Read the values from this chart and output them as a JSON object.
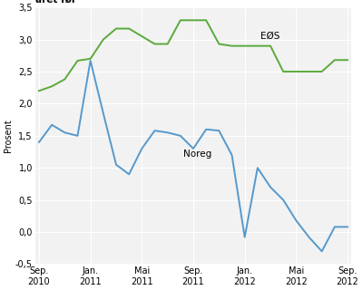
{
  "ylabel": "Prosent",
  "eos_color": "#5aaa3c",
  "noreg_color": "#5599cc",
  "grid_color": "#cccccc",
  "bg_color": "#f2f2f2",
  "eos_label": "EØS",
  "noreg_label": "Noreg",
  "eos_x": [
    0,
    1,
    2,
    3,
    4,
    5,
    6,
    7,
    8,
    9,
    10,
    11,
    12,
    13,
    14,
    15,
    16,
    17,
    18,
    19,
    20,
    21,
    22,
    23,
    24
  ],
  "eos_y": [
    2.2,
    2.27,
    2.38,
    2.67,
    2.7,
    3.0,
    3.17,
    3.17,
    3.05,
    2.93,
    2.93,
    3.3,
    3.3,
    3.3,
    2.93,
    2.9,
    2.9,
    2.9,
    2.9,
    2.5,
    2.5,
    2.5,
    2.5,
    2.68,
    2.68
  ],
  "noreg_x": [
    0,
    1,
    2,
    3,
    4,
    5,
    6,
    7,
    8,
    9,
    10,
    11,
    12,
    13,
    14,
    15,
    16,
    17,
    18,
    19,
    20,
    21,
    22,
    23,
    24
  ],
  "noreg_y": [
    1.4,
    1.67,
    1.55,
    1.5,
    2.67,
    1.85,
    1.05,
    0.9,
    1.3,
    1.58,
    1.55,
    1.5,
    1.3,
    1.6,
    1.58,
    1.2,
    -0.08,
    1.0,
    0.7,
    0.5,
    0.18,
    -0.08,
    -0.3,
    0.08,
    0.08
  ],
  "ylim": [
    -0.5,
    3.5
  ],
  "ytick_vals": [
    -0.5,
    0.0,
    0.5,
    1.0,
    1.5,
    2.0,
    2.5,
    3.0,
    3.5
  ],
  "xtick_pos": [
    0,
    4,
    8,
    12,
    16,
    20,
    24
  ],
  "xtick_labels": [
    "Sep.\n2010",
    "Jan.\n2011",
    "Mai\n2011",
    "Sep.\n2011",
    "Jan.\n2012",
    "Mai\n2012",
    "Sep.\n2012"
  ],
  "xlim": [
    -0.3,
    24.3
  ],
  "eos_ann_x": 17.2,
  "eos_ann_y": 3.05,
  "noreg_ann_x": 11.2,
  "noreg_ann_y": 1.22
}
